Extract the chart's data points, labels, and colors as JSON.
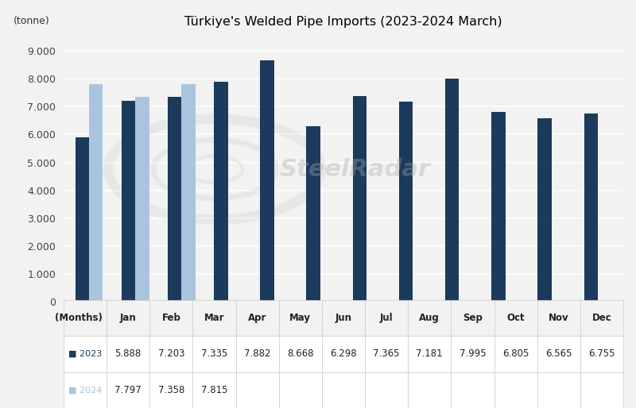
{
  "title": "Türkiye's Welded Pipe Imports (2023-2024 March)",
  "ylabel": "(tonne)",
  "months": [
    "Jan",
    "Feb",
    "Mar",
    "Apr",
    "May",
    "Jun",
    "Jul",
    "Aug",
    "Sep",
    "Oct",
    "Nov",
    "Dec"
  ],
  "data_2023": [
    5.888,
    7.203,
    7.335,
    7.882,
    8.668,
    6.298,
    7.365,
    7.181,
    7.995,
    6.805,
    6.565,
    6.755
  ],
  "data_2024": [
    7.797,
    7.358,
    7.815,
    null,
    null,
    null,
    null,
    null,
    null,
    null,
    null,
    null
  ],
  "color_2023": "#1b3a5c",
  "color_2024": "#aac4e0",
  "ylim": [
    0,
    9.5
  ],
  "yticks": [
    0,
    1.0,
    2.0,
    3.0,
    4.0,
    5.0,
    6.0,
    7.0,
    8.0,
    9.0
  ],
  "bg_color": "#f2f2f2",
  "plot_bg_color": "#f2f2f2",
  "table_2023_label": "2023",
  "table_2024_label": "2024",
  "table_2023_values": [
    "5.888",
    "7.203",
    "7.335",
    "7.882",
    "8.668",
    "6.298",
    "7.365",
    "7.181",
    "7.995",
    "6.805",
    "6.565",
    "6.755"
  ],
  "table_2024_values": [
    "7.797",
    "7.358",
    "7.815",
    "",
    "",
    "",
    "",
    "",
    "",
    "",
    "",
    ""
  ],
  "watermark_text": "SteelRadar",
  "bar_width": 0.3
}
